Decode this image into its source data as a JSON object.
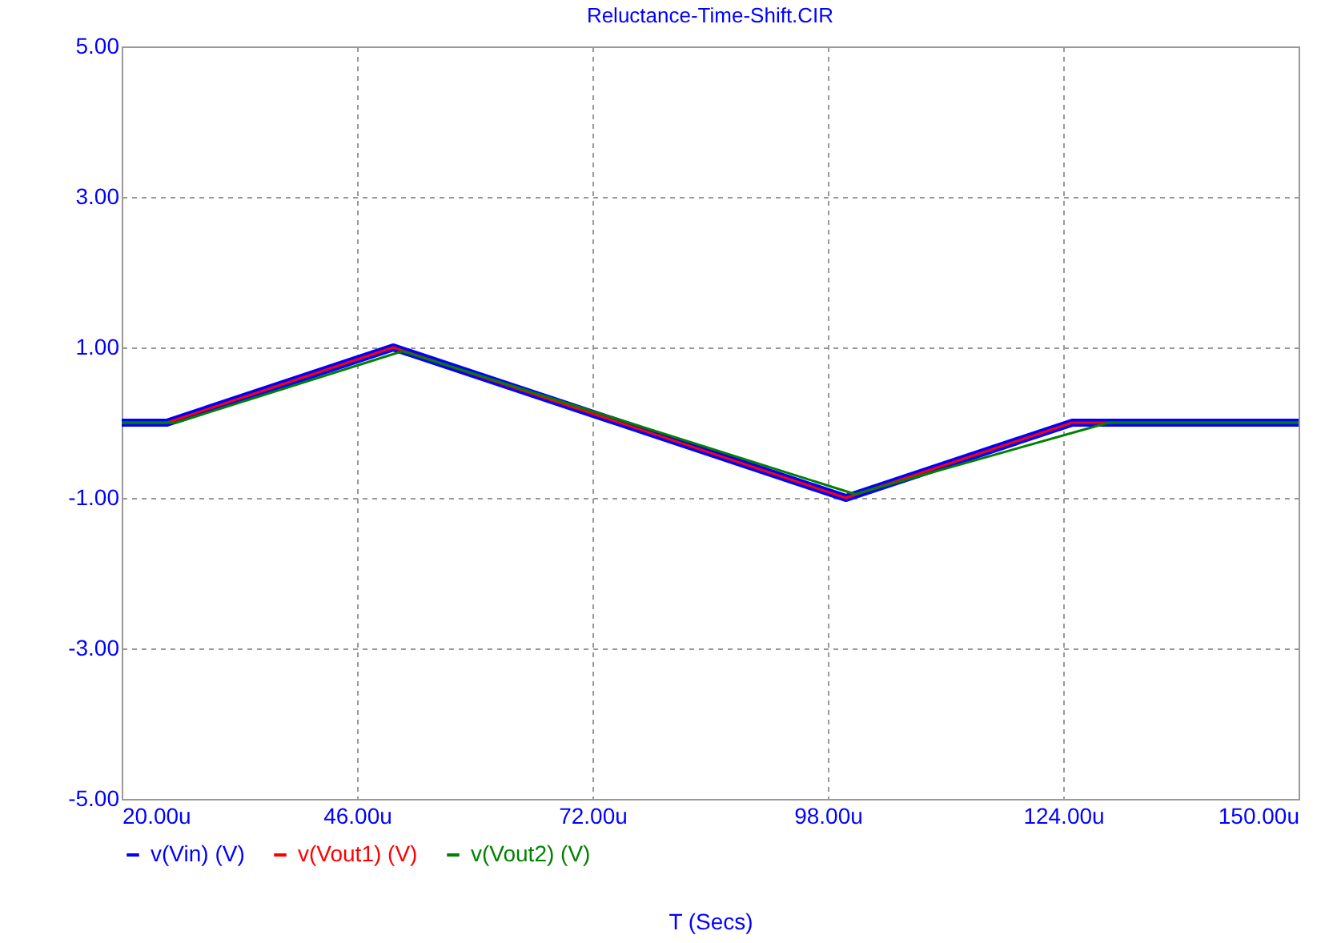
{
  "chart_data": {
    "type": "line",
    "title": "Reluctance-Time-Shift.CIR",
    "xlabel": "T (Secs)",
    "xlim": [
      20,
      150
    ],
    "xticks": [
      {
        "value": 20,
        "label": "20.00u"
      },
      {
        "value": 46,
        "label": "46.00u"
      },
      {
        "value": 72,
        "label": "72.00u"
      },
      {
        "value": 98,
        "label": "98.00u"
      },
      {
        "value": 124,
        "label": "124.00u"
      },
      {
        "value": 150,
        "label": "150.00u"
      }
    ],
    "ylim": [
      -5,
      5
    ],
    "yticks": [
      {
        "value": -5,
        "label": "-5.00"
      },
      {
        "value": -3,
        "label": "-3.00"
      },
      {
        "value": -1,
        "label": "-1.00"
      },
      {
        "value": 1,
        "label": "1.00"
      },
      {
        "value": 3,
        "label": "3.00"
      },
      {
        "value": 5,
        "label": "5.00"
      }
    ],
    "grid": true,
    "legend": "bottom left",
    "marker": "none",
    "line_style": "solid",
    "series": [
      {
        "name": "v(Vin) (V)",
        "color": "#0000ff",
        "x": [
          20,
          25,
          50,
          100,
          125,
          150
        ],
        "values": [
          0,
          0,
          1,
          -1,
          0,
          0
        ]
      },
      {
        "name": "v(Vout1) (V)",
        "color": "#ff0000",
        "x": [
          20,
          25,
          50,
          100,
          125,
          150
        ],
        "values": [
          0,
          0,
          1,
          -1,
          0,
          0
        ]
      },
      {
        "name": "v(Vout2) (V)",
        "color": "#008000",
        "x": [
          20,
          26,
          51,
          101,
          129,
          150
        ],
        "values": [
          0,
          0,
          0.95,
          -0.95,
          0,
          0
        ]
      }
    ]
  }
}
